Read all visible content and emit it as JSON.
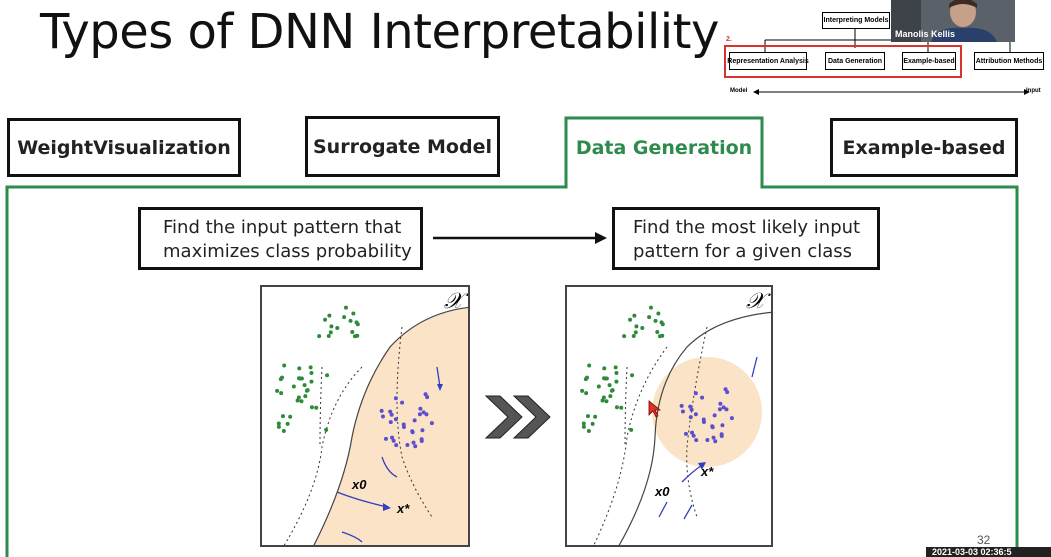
{
  "slide": {
    "title": "Types of DNN Interpretability",
    "page_number": "32",
    "timestamp": "2021-03-03 02:36:5"
  },
  "mini_diagram": {
    "root": "Interpreting Models",
    "number": "2.",
    "boxes": [
      "Representation Analysis",
      "Data Generation",
      "Example-based",
      "Attribution Methods"
    ],
    "axis_left": "Model",
    "axis_right": "Input"
  },
  "video": {
    "name": "Manolis Kellis"
  },
  "tabs": [
    {
      "label": "WeightVisualization",
      "active": false
    },
    {
      "label": "Surrogate Model",
      "active": false
    },
    {
      "label": "Data Generation",
      "active": true
    },
    {
      "label": "Example-based",
      "active": false
    }
  ],
  "boxes": {
    "left": [
      "Find the input pattern that",
      "maximizes class probability"
    ],
    "right": [
      "Find the most likely input",
      "pattern for a given class"
    ]
  },
  "figure": {
    "space_label": "𝒳",
    "x0_label": "x0",
    "xstar_label": "x*"
  },
  "colors": {
    "accent_green": "#2e8b4e",
    "highlight_red": "#d9342b",
    "green_dots": "#2e8b3a",
    "blue_dots": "#5a4fcf",
    "region_fill": "#fbe3c8"
  }
}
